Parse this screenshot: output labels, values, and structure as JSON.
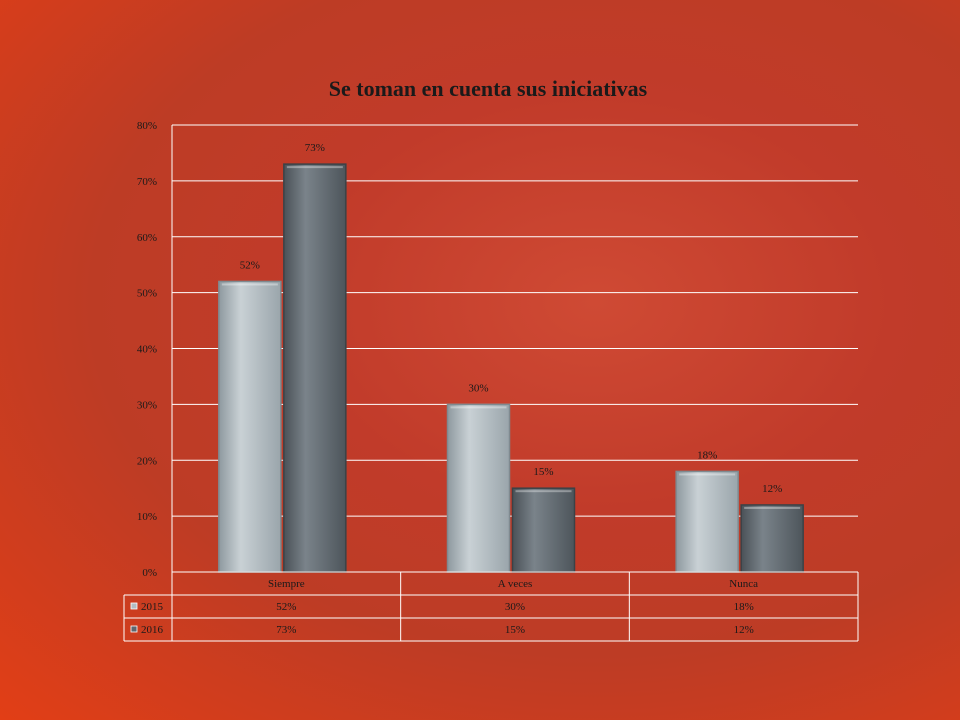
{
  "chart_data": {
    "type": "bar",
    "title": "Se toman en cuenta sus iniciativas",
    "categories": [
      "Siempre",
      "A veces",
      "Nunca"
    ],
    "series": [
      {
        "name": "2015",
        "values": [
          52,
          30,
          18
        ],
        "labels": [
          "52%",
          "30%",
          "18%"
        ],
        "color": "#b3bcc1"
      },
      {
        "name": "2016",
        "values": [
          73,
          15,
          12
        ],
        "labels": [
          "73%",
          "15%",
          "12%"
        ],
        "color": "#5e666d"
      }
    ],
    "ylim": [
      0,
      80
    ],
    "yticks": [
      "0%",
      "10%",
      "20%",
      "30%",
      "40%",
      "50%",
      "60%",
      "70%",
      "80%"
    ],
    "grid": true,
    "legend": "data-table",
    "xlabel": "",
    "ylabel": ""
  }
}
